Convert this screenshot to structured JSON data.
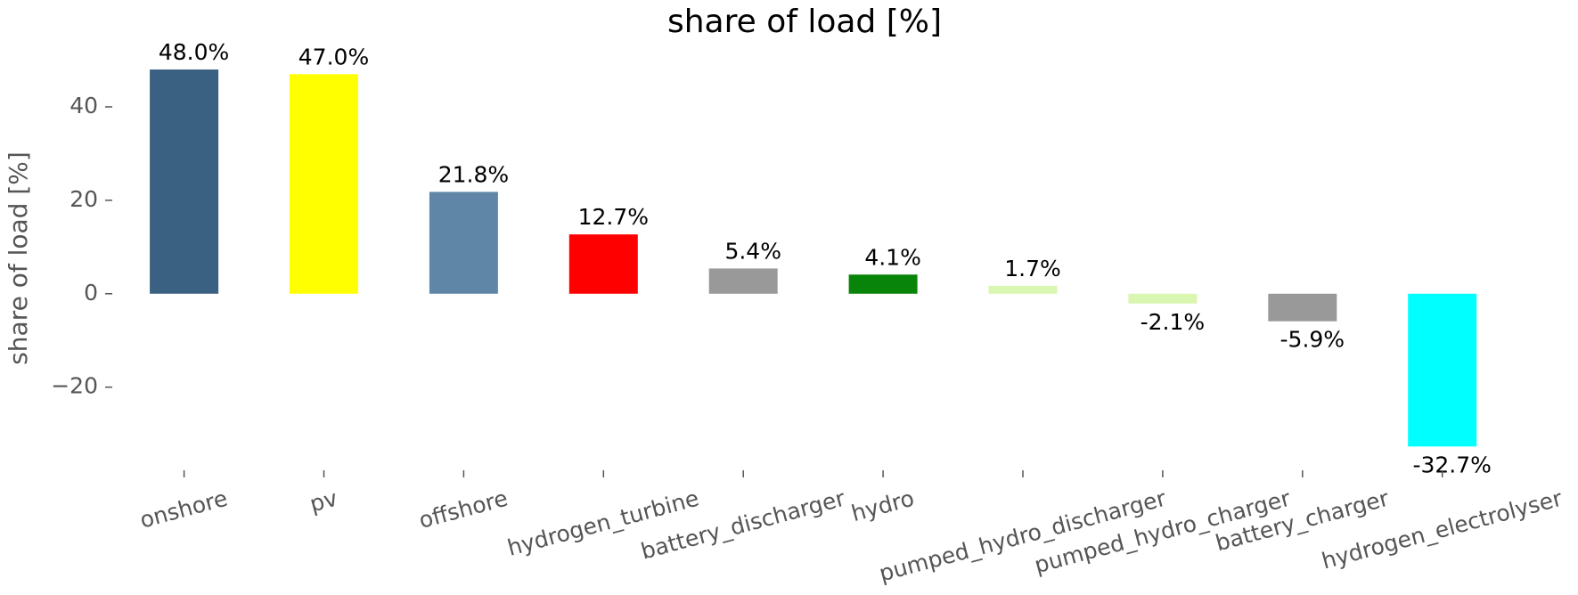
{
  "chart_data": {
    "type": "bar",
    "title": "share of load [%]",
    "ylabel": "share of load [%]",
    "categories": [
      "onshore",
      "pv",
      "offshore",
      "hydrogen_turbine",
      "battery_discharger",
      "hydro",
      "pumped_hydro_discharger",
      "pumped_hydro_charger",
      "battery_charger",
      "hydrogen_electrolyser"
    ],
    "values": [
      48.0,
      47.0,
      21.8,
      12.7,
      5.4,
      4.1,
      1.7,
      -2.1,
      -5.9,
      -32.7
    ],
    "value_labels": [
      "48.0%",
      "47.0%",
      "21.8%",
      "12.7%",
      "5.4%",
      "4.1%",
      "1.7%",
      "-2.1%",
      "-5.9%",
      "-32.7%"
    ],
    "colors": [
      "#3b6182",
      "#ffff00",
      "#5f86a6",
      "#ff0000",
      "#999999",
      "#088408",
      "#d9f7b0",
      "#d9f7b0",
      "#999999",
      "#00ffff"
    ],
    "ylim": [
      -37.8,
      52.2
    ],
    "yticks": [
      {
        "value": -20,
        "label": "−20"
      },
      0,
      20,
      40
    ],
    "grid": false
  }
}
